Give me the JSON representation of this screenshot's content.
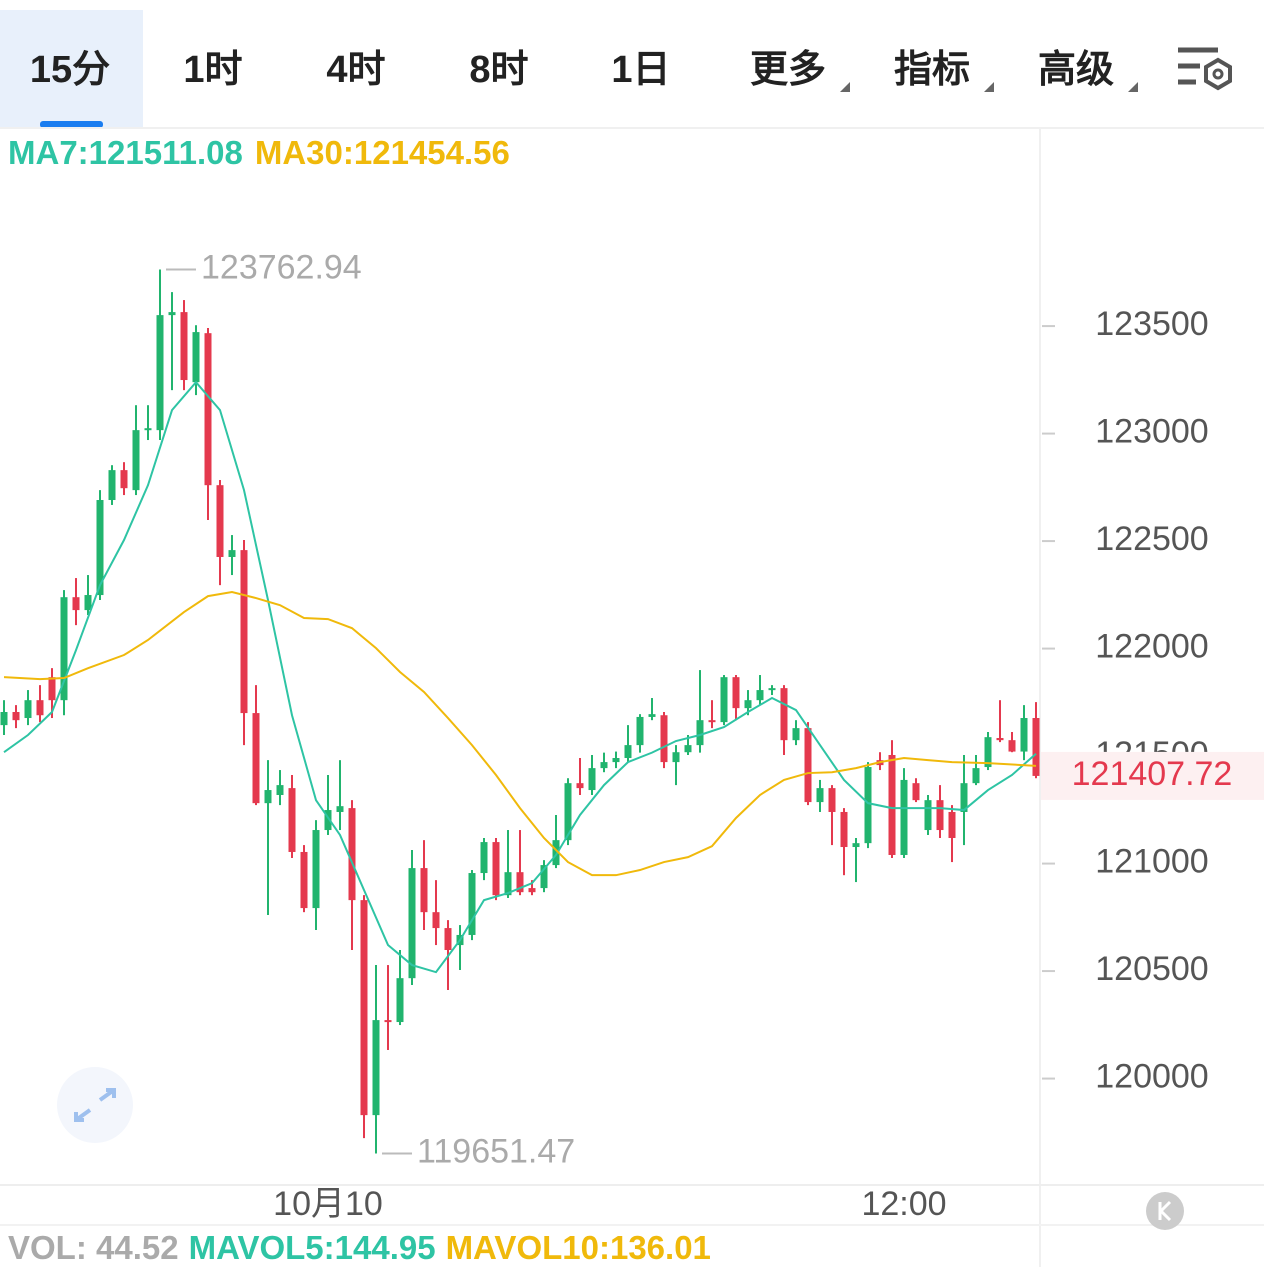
{
  "tabs": [
    "15分",
    "1时",
    "4时",
    "8时",
    "1日",
    "更多",
    "指标",
    "高级"
  ],
  "chart_data": {
    "type": "candlestick",
    "ma_legend": [
      "MA7:121511.08",
      "MA30:121454.56"
    ],
    "vol_legend": [
      "VOL: 44.52",
      "MAVOL5:144.95",
      "MAVOL10:136.01"
    ],
    "categories": [
      null,
      null,
      null,
      null,
      null,
      null,
      null,
      null,
      null,
      null,
      null,
      null,
      null,
      null,
      null,
      null,
      null,
      null,
      null,
      null,
      null,
      null,
      null,
      null,
      null,
      null,
      null,
      "10月10",
      null,
      null,
      null,
      null,
      null,
      null,
      null,
      null,
      null,
      null,
      null,
      null,
      null,
      null,
      null,
      null,
      null,
      null,
      null,
      null,
      null,
      null,
      null,
      null,
      null,
      null,
      null,
      null,
      null,
      null,
      null,
      null,
      null,
      null,
      null,
      null,
      null,
      null,
      null,
      null,
      null,
      null,
      null,
      null,
      null,
      null,
      null,
      "12:00",
      null,
      null,
      null,
      null,
      null,
      null,
      null,
      null,
      null,
      null,
      null
    ],
    "open": [
      121644,
      121705,
      121677,
      121760,
      121867,
      121760,
      122239,
      122179,
      122249,
      122691,
      122830,
      122737,
      123016,
      123016,
      123551,
      123565,
      123239,
      123467,
      122760,
      122426,
      122458,
      121700,
      121281,
      121319,
      121351,
      121054,
      120793,
      121156,
      121240,
      121258,
      120830,
      119830,
      120272,
      120263,
      120467,
      120979,
      120774,
      120700,
      120621,
      120668,
      120956,
      121100,
      120853,
      120960,
      120886,
      120886,
      120993,
      121109,
      121374,
      121342,
      121444,
      121472,
      121491,
      121551,
      121682,
      121690,
      121472,
      121518,
      121551,
      121667,
      121658,
      121867,
      121723,
      121760,
      121807,
      121816,
      121574,
      121630,
      121286,
      121351,
      121240,
      121077,
      121095,
      121481,
      121505,
      121040,
      121374,
      121156,
      121295,
      121240,
      121240,
      121374,
      121449,
      121584,
      121574,
      121521,
      121677
    ],
    "high": [
      121760,
      121737,
      121807,
      121830,
      121909,
      122272,
      122328,
      122342,
      122737,
      122853,
      122867,
      123132,
      123132,
      123762.94,
      123658,
      123621,
      123504,
      123491,
      122784,
      122528,
      122505,
      121830,
      121481,
      121435,
      121412,
      121086,
      121202,
      121412,
      121481,
      121295,
      120853,
      120528,
      120528,
      120598,
      121063,
      121109,
      120923,
      120737,
      120714,
      120970,
      121119,
      121119,
      121156,
      121156,
      120923,
      121016,
      121226,
      121397,
      121491,
      121505,
      121516,
      121521,
      121644,
      121695,
      121770,
      121705,
      121551,
      121598,
      121900,
      121760,
      121877,
      121877,
      121807,
      121877,
      121830,
      121830,
      121667,
      121658,
      121389,
      121365,
      121258,
      121119,
      121472,
      121518,
      121574,
      121444,
      121397,
      121319,
      121365,
      121272,
      121505,
      121505,
      121612,
      121760,
      121612,
      121737,
      121751
    ],
    "low": [
      121598,
      121630,
      121644,
      121658,
      121677,
      121690,
      122109,
      122156,
      122226,
      122668,
      122714,
      122714,
      122970,
      122970,
      123202,
      123202,
      123179,
      122598,
      122295,
      122342,
      121551,
      121272,
      120761,
      121272,
      121026,
      120774,
      120691,
      121133,
      121156,
      120598,
      119723,
      119651.47,
      120133,
      120249,
      120435,
      120691,
      120621,
      120412,
      120505,
      120644,
      120923,
      120830,
      120840,
      120853,
      120853,
      120867,
      120979,
      121086,
      121319,
      121319,
      121425,
      121444,
      121472,
      121516,
      121667,
      121444,
      121365,
      121505,
      121516,
      121630,
      121644,
      121667,
      121690,
      121737,
      121784,
      121505,
      121551,
      121272,
      121240,
      121086,
      120946,
      120914,
      121072,
      121435,
      121026,
      121026,
      121286,
      121133,
      121119,
      121007,
      121086,
      121365,
      121435,
      121565,
      121518,
      121481,
      121397
    ],
    "close": [
      121705,
      121667,
      121760,
      121690,
      121760,
      122239,
      122179,
      122249,
      122691,
      122830,
      122746,
      123016,
      123025,
      123551,
      123565,
      123249,
      123472,
      122760,
      122426,
      122458,
      121700,
      121281,
      121342,
      121365,
      121054,
      120793,
      121156,
      121249,
      121267,
      120830,
      119830,
      120272,
      120263,
      120467,
      120979,
      120774,
      120700,
      120598,
      120668,
      120956,
      121100,
      120853,
      120960,
      120867,
      120867,
      120993,
      121109,
      121374,
      121351,
      121444,
      121472,
      121491,
      121551,
      121682,
      121695,
      121472,
      121518,
      121551,
      121667,
      121658,
      121867,
      121723,
      121760,
      121807,
      121816,
      121574,
      121630,
      121286,
      121351,
      121240,
      121077,
      121095,
      121449,
      121458,
      121040,
      121389,
      121295,
      121295,
      121156,
      121119,
      121374,
      121444,
      121588,
      121574,
      121521,
      121677,
      121407.72
    ],
    "up_color": "#21b46e",
    "down_color": "#e4394e",
    "series": [
      {
        "color": "#2ec4a4",
        "x": [
          0,
          2,
          4,
          6,
          8,
          10,
          12,
          14,
          16,
          18,
          20,
          22,
          24,
          26,
          28,
          30,
          32,
          34,
          36,
          38,
          40,
          42,
          44,
          46,
          48,
          50,
          52,
          54,
          56,
          58,
          60,
          62,
          64,
          66,
          68,
          70,
          72,
          74,
          76,
          78,
          80,
          82,
          84,
          86
        ],
        "values": [
          121518,
          121598,
          121705,
          121993,
          122295,
          122505,
          122760,
          123109,
          123239,
          123109,
          122737,
          122226,
          121690,
          121295,
          121133,
          120877,
          120621,
          120528,
          120495,
          120644,
          120830,
          120863,
          120909,
          121040,
          121226,
          121365,
          121472,
          121516,
          121570,
          121598,
          121635,
          121705,
          121770,
          121714,
          121551,
          121389,
          121281,
          121258,
          121258,
          121258,
          121249,
          121342,
          121412,
          121511.08
        ]
      },
      {
        "color": "#f0b90b",
        "x": [
          0,
          3,
          5,
          7,
          10,
          12,
          15,
          17,
          19,
          21,
          23,
          25,
          27,
          29,
          31,
          33,
          35,
          37,
          39,
          41,
          43,
          45,
          47,
          49,
          51,
          53,
          55,
          57,
          59,
          61,
          63,
          65,
          67,
          69,
          71,
          73,
          75,
          77,
          79,
          82,
          86
        ],
        "values": [
          121867,
          121858,
          121863,
          121909,
          121970,
          122040,
          122170,
          122244,
          122263,
          122235,
          122202,
          122142,
          122137,
          122095,
          122002,
          121891,
          121798,
          121677,
          121551,
          121412,
          121258,
          121119,
          121007,
          120946,
          120946,
          120970,
          121007,
          121030,
          121081,
          121212,
          121319,
          121389,
          121421,
          121425,
          121444,
          121472,
          121491,
          121481,
          121472,
          121467,
          121454.56
        ]
      }
    ],
    "max_label": 123762.94,
    "min_label": 119651.47,
    "last_price": 121407.72,
    "ylim": [
      119505,
      124412
    ],
    "yticks": [
      120000,
      120500,
      121000,
      121500,
      122000,
      122500,
      123000,
      123500
    ]
  }
}
